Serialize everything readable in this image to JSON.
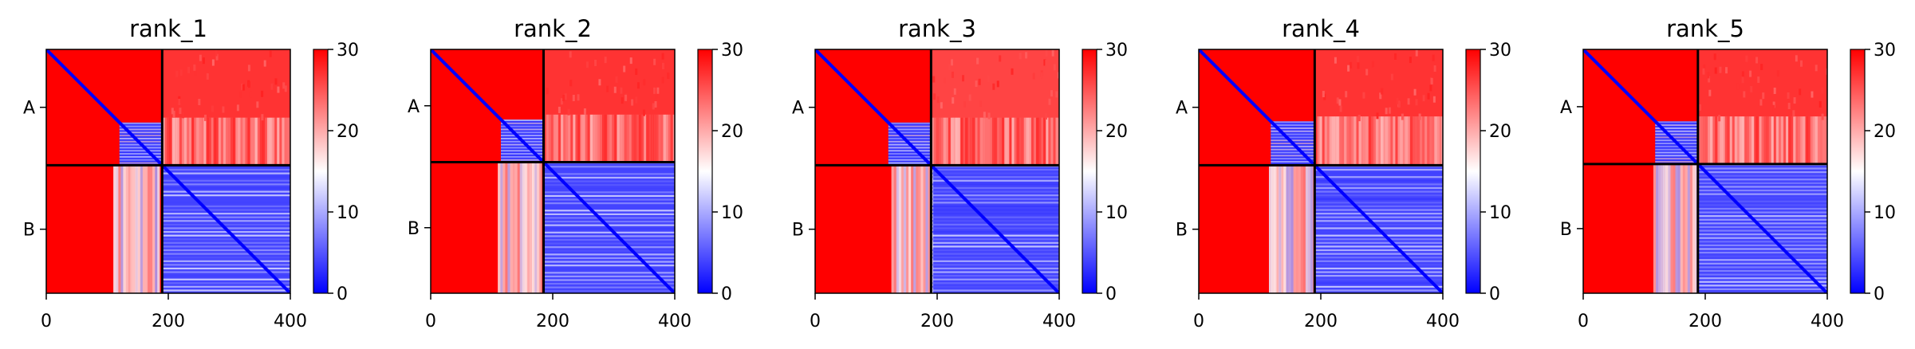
{
  "figure": {
    "panel_count": 5
  },
  "chart_data": [
    {
      "type": "heatmap",
      "title": "rank_1",
      "x_ticks": [
        0,
        200,
        400
      ],
      "xlim": [
        0,
        400
      ],
      "chains": [
        {
          "label": "A",
          "start": 0,
          "end": 190
        },
        {
          "label": "B",
          "start": 190,
          "end": 400
        }
      ],
      "y_inverted": true,
      "colorbar": {
        "range": [
          0,
          30
        ],
        "ticks": [
          0,
          10,
          20,
          30
        ],
        "colors": [
          "#0000ff",
          "#ffffff",
          "#ff0000"
        ]
      },
      "regions": [
        {
          "region": "A-A (above diagonal)",
          "value": 30
        },
        {
          "region": "A-A (residues ~120-190 block)",
          "value": 3
        },
        {
          "region": "A-B inter-chain",
          "value": 27
        },
        {
          "region": "B-A inter-chain",
          "value": 30
        },
        {
          "region": "B-A (residues ~120-190 stripe)",
          "value": 16
        },
        {
          "region": "B-B",
          "value": 4
        },
        {
          "region": "diagonal",
          "value": 0
        }
      ],
      "flex_start": 120,
      "stripe_range": [
        110,
        185
      ]
    },
    {
      "type": "heatmap",
      "title": "rank_2",
      "x_ticks": [
        0,
        200,
        400
      ],
      "xlim": [
        0,
        400
      ],
      "chains": [
        {
          "label": "A",
          "start": 0,
          "end": 185
        },
        {
          "label": "B",
          "start": 185,
          "end": 400
        }
      ],
      "y_inverted": true,
      "colorbar": {
        "range": [
          0,
          30
        ],
        "ticks": [
          0,
          10,
          20,
          30
        ],
        "colors": [
          "#0000ff",
          "#ffffff",
          "#ff0000"
        ]
      },
      "regions": [
        {
          "region": "A-A (above diagonal)",
          "value": 30
        },
        {
          "region": "A-A (residues ~120-185 block)",
          "value": 3
        },
        {
          "region": "A-B inter-chain",
          "value": 27
        },
        {
          "region": "B-A inter-chain",
          "value": 30
        },
        {
          "region": "B-A (residues ~120-185 stripe)",
          "value": 16
        },
        {
          "region": "B-B",
          "value": 4
        },
        {
          "region": "diagonal",
          "value": 0
        }
      ],
      "flex_start": 115,
      "stripe_range": [
        110,
        182
      ]
    },
    {
      "type": "heatmap",
      "title": "rank_3",
      "x_ticks": [
        0,
        200,
        400
      ],
      "xlim": [
        0,
        400
      ],
      "chains": [
        {
          "label": "A",
          "start": 0,
          "end": 190
        },
        {
          "label": "B",
          "start": 190,
          "end": 400
        }
      ],
      "y_inverted": true,
      "colorbar": {
        "range": [
          0,
          30
        ],
        "ticks": [
          0,
          10,
          20,
          30
        ],
        "colors": [
          "#0000ff",
          "#ffffff",
          "#ff0000"
        ]
      },
      "regions": [
        {
          "region": "A-A (above diagonal)",
          "value": 30
        },
        {
          "region": "A-A (residues ~120-190 block)",
          "value": 3
        },
        {
          "region": "A-B inter-chain",
          "value": 26
        },
        {
          "region": "B-A inter-chain",
          "value": 30
        },
        {
          "region": "B-A (residues ~130-190 stripe)",
          "value": 15
        },
        {
          "region": "B-B",
          "value": 4
        },
        {
          "region": "diagonal",
          "value": 0
        }
      ],
      "flex_start": 120,
      "stripe_range": [
        125,
        190
      ]
    },
    {
      "type": "heatmap",
      "title": "rank_4",
      "x_ticks": [
        0,
        200,
        400
      ],
      "xlim": [
        0,
        400
      ],
      "chains": [
        {
          "label": "A",
          "start": 0,
          "end": 190
        },
        {
          "label": "B",
          "start": 190,
          "end": 400
        }
      ],
      "y_inverted": true,
      "colorbar": {
        "range": [
          0,
          30
        ],
        "ticks": [
          0,
          10,
          20,
          30
        ],
        "colors": [
          "#0000ff",
          "#ffffff",
          "#ff0000"
        ]
      },
      "regions": [
        {
          "region": "A-A (above diagonal)",
          "value": 30
        },
        {
          "region": "A-A (residues ~120-190 block)",
          "value": 3
        },
        {
          "region": "A-B inter-chain",
          "value": 27
        },
        {
          "region": "B-A inter-chain",
          "value": 30
        },
        {
          "region": "B-A (residues ~120-190 stripe)",
          "value": 16
        },
        {
          "region": "B-B",
          "value": 4
        },
        {
          "region": "diagonal",
          "value": 0
        }
      ],
      "flex_start": 118,
      "stripe_range": [
        115,
        188
      ]
    },
    {
      "type": "heatmap",
      "title": "rank_5",
      "x_ticks": [
        0,
        200,
        400
      ],
      "xlim": [
        0,
        400
      ],
      "chains": [
        {
          "label": "A",
          "start": 0,
          "end": 188
        },
        {
          "label": "B",
          "start": 188,
          "end": 400
        }
      ],
      "y_inverted": true,
      "colorbar": {
        "range": [
          0,
          30
        ],
        "ticks": [
          0,
          10,
          20,
          30
        ],
        "colors": [
          "#0000ff",
          "#ffffff",
          "#ff0000"
        ]
      },
      "regions": [
        {
          "region": "A-A (above diagonal)",
          "value": 30
        },
        {
          "region": "A-A (residues ~120-188 block)",
          "value": 3
        },
        {
          "region": "A-B inter-chain",
          "value": 27
        },
        {
          "region": "B-A inter-chain",
          "value": 30
        },
        {
          "region": "B-A (residues ~120-188 stripe)",
          "value": 16
        },
        {
          "region": "B-B",
          "value": 4
        },
        {
          "region": "diagonal",
          "value": 0
        }
      ],
      "flex_start": 118,
      "stripe_range": [
        115,
        186
      ]
    }
  ]
}
